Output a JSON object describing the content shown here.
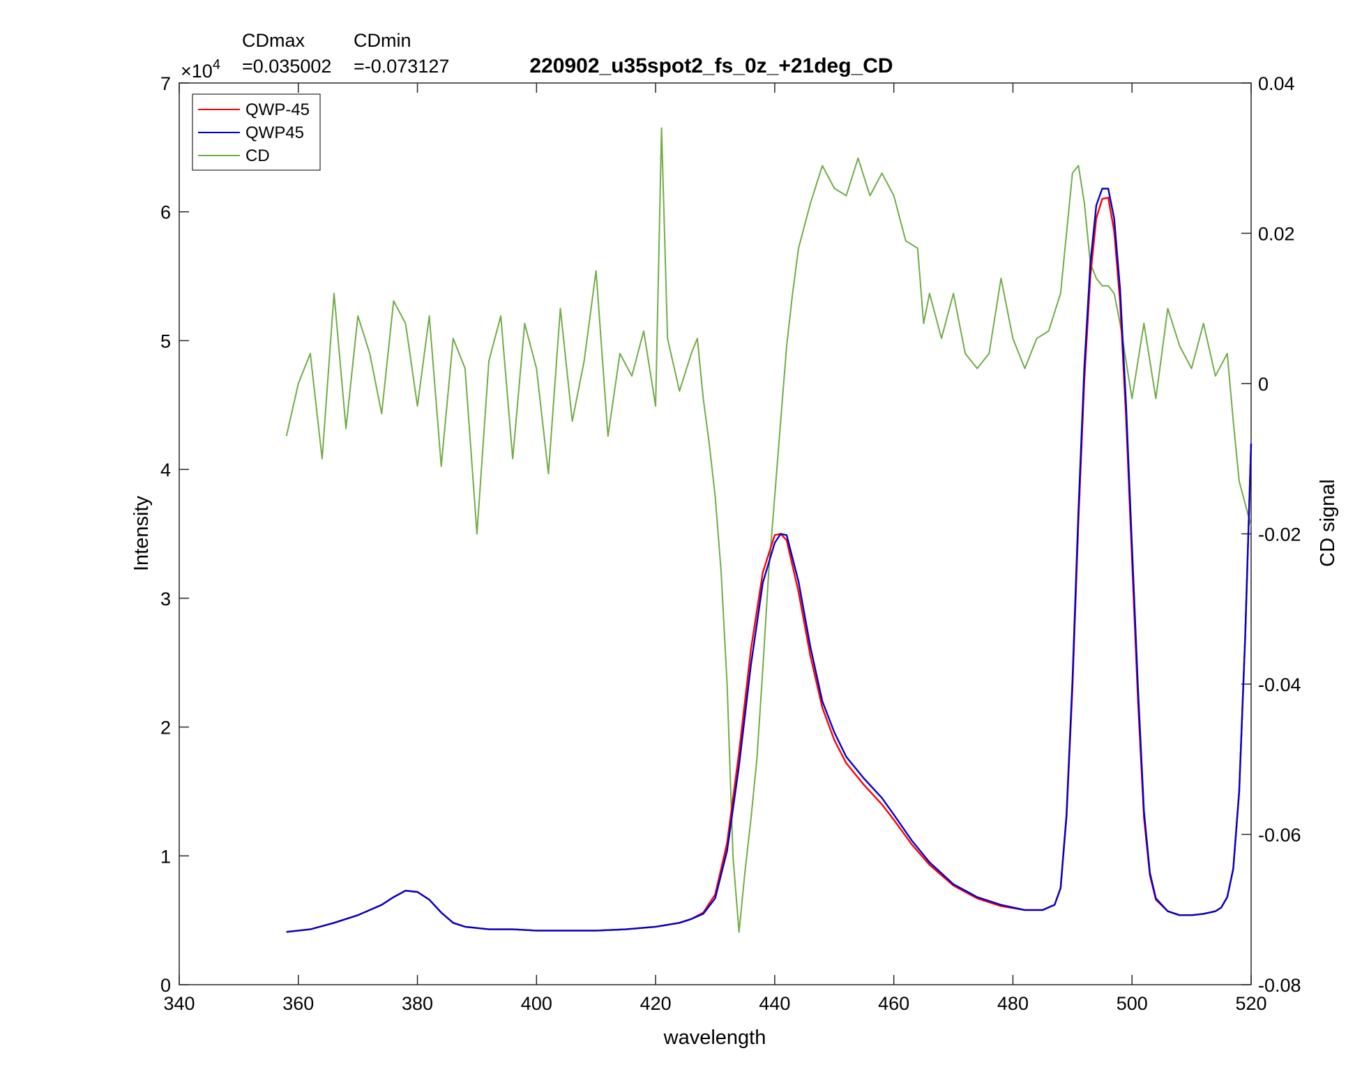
{
  "chart_data": {
    "type": "line",
    "title": "220902_u35spot2_fs_0z_+21deg_CD",
    "annotations": {
      "cdmax_label": "CDmax",
      "cdmax_value": "=0.035002",
      "cdmin_label": "CDmin",
      "cdmin_value": "=-0.073127"
    },
    "xlabel": "wavelength",
    "ylabel_left": "Intensity",
    "ylabel_right": "CD signal",
    "y_exponent_label": "×10",
    "y_exponent_power": "4",
    "xlim": [
      340,
      520
    ],
    "ylim_left": [
      0,
      70000
    ],
    "ylim_right": [
      -0.08,
      0.04
    ],
    "x_ticks": [
      "340",
      "360",
      "380",
      "400",
      "420",
      "440",
      "460",
      "480",
      "500",
      "520"
    ],
    "y_left_ticks": [
      "0",
      "1",
      "2",
      "3",
      "4",
      "5",
      "6",
      "7"
    ],
    "y_right_ticks": [
      "-0.08",
      "-0.06",
      "-0.04",
      "-0.02",
      "0",
      "0.02",
      "0.04"
    ],
    "grid": false,
    "legend_position": "top-left",
    "series": [
      {
        "name": "QWP-45",
        "axis": "left",
        "color": "#ff0000",
        "x": [
          358,
          362,
          366,
          370,
          374,
          376,
          378,
          380,
          382,
          384,
          386,
          388,
          392,
          396,
          400,
          405,
          410,
          415,
          420,
          424,
          426,
          428,
          430,
          432,
          434,
          436,
          438,
          440,
          441,
          442,
          444,
          446,
          448,
          450,
          452,
          455,
          458,
          460,
          463,
          466,
          470,
          474,
          478,
          482,
          485,
          487,
          488,
          489,
          490,
          491,
          492,
          493,
          494,
          495,
          496,
          497,
          498,
          499,
          500,
          501,
          502,
          503,
          504,
          506,
          508,
          510,
          512,
          514,
          515,
          516,
          517,
          518,
          519,
          520
        ],
        "y": [
          4100,
          4300,
          4800,
          5400,
          6200,
          6800,
          7300,
          7200,
          6600,
          5600,
          4800,
          4500,
          4300,
          4300,
          4200,
          4200,
          4200,
          4300,
          4500,
          4800,
          5100,
          5600,
          7000,
          11000,
          18000,
          26000,
          32000,
          34900,
          35000,
          34500,
          30500,
          25500,
          21500,
          19000,
          17200,
          15500,
          14000,
          12800,
          10900,
          9300,
          7700,
          6700,
          6100,
          5800,
          5800,
          6200,
          7500,
          13000,
          23000,
          36000,
          47000,
          55000,
          59500,
          61000,
          61100,
          58500,
          53000,
          44000,
          33000,
          22000,
          13000,
          8500,
          6600,
          5700,
          5400,
          5400,
          5500,
          5700,
          6000,
          6800,
          9000,
          15000,
          27000,
          42000
        ]
      },
      {
        "name": "QWP45",
        "axis": "left",
        "color": "#0000cc",
        "x": [
          358,
          362,
          366,
          370,
          374,
          376,
          378,
          380,
          382,
          384,
          386,
          388,
          392,
          396,
          400,
          405,
          410,
          415,
          420,
          424,
          426,
          428,
          430,
          432,
          434,
          436,
          438,
          440,
          441,
          442,
          444,
          446,
          448,
          450,
          452,
          455,
          458,
          460,
          463,
          466,
          470,
          474,
          478,
          482,
          485,
          487,
          488,
          489,
          490,
          491,
          492,
          493,
          494,
          495,
          496,
          497,
          498,
          499,
          500,
          501,
          502,
          503,
          504,
          506,
          508,
          510,
          512,
          514,
          515,
          516,
          517,
          518,
          519,
          520
        ],
        "y": [
          4100,
          4300,
          4800,
          5400,
          6200,
          6800,
          7300,
          7200,
          6600,
          5600,
          4800,
          4500,
          4300,
          4300,
          4200,
          4200,
          4200,
          4300,
          4500,
          4800,
          5100,
          5500,
          6700,
          10400,
          17000,
          24800,
          31200,
          34300,
          35000,
          34900,
          31300,
          26200,
          22000,
          19600,
          17700,
          16000,
          14500,
          13200,
          11200,
          9500,
          7800,
          6800,
          6200,
          5800,
          5800,
          6200,
          7500,
          13200,
          23600,
          36800,
          48000,
          56000,
          60500,
          61800,
          61800,
          59500,
          54000,
          45000,
          34000,
          23000,
          13500,
          8700,
          6700,
          5700,
          5400,
          5400,
          5500,
          5700,
          6000,
          6800,
          9000,
          15000,
          27000,
          42000
        ]
      },
      {
        "name": "CD",
        "axis": "right",
        "color": "#70ad47",
        "x": [
          358,
          360,
          362,
          364,
          366,
          368,
          370,
          372,
          374,
          376,
          378,
          380,
          382,
          384,
          386,
          388,
          390,
          392,
          394,
          396,
          398,
          400,
          402,
          404,
          406,
          408,
          410,
          412,
          414,
          416,
          418,
          420,
          421,
          422,
          424,
          426,
          427,
          428,
          429,
          430,
          431,
          432,
          433,
          434,
          435,
          436,
          437,
          438,
          439,
          440,
          441,
          442,
          443,
          444,
          446,
          448,
          450,
          452,
          454,
          456,
          458,
          460,
          462,
          464,
          465,
          466,
          468,
          470,
          472,
          474,
          476,
          478,
          480,
          482,
          484,
          486,
          488,
          490,
          491,
          492,
          493,
          494,
          495,
          496,
          497,
          498,
          500,
          502,
          504,
          506,
          508,
          510,
          512,
          514,
          516,
          517,
          518,
          519,
          520
        ],
        "y": [
          -0.007,
          0.0,
          0.004,
          -0.01,
          0.012,
          -0.006,
          0.009,
          0.004,
          -0.004,
          0.011,
          0.008,
          -0.003,
          0.009,
          -0.011,
          0.006,
          0.002,
          -0.02,
          0.003,
          0.009,
          -0.01,
          0.008,
          0.002,
          -0.012,
          0.01,
          -0.005,
          0.003,
          0.015,
          -0.007,
          0.004,
          0.001,
          0.007,
          -0.003,
          0.034,
          0.006,
          -0.001,
          0.004,
          0.006,
          -0.002,
          -0.008,
          -0.015,
          -0.025,
          -0.04,
          -0.063,
          -0.073,
          -0.065,
          -0.058,
          -0.05,
          -0.038,
          -0.025,
          -0.015,
          -0.005,
          0.005,
          0.012,
          0.018,
          0.024,
          0.029,
          0.026,
          0.025,
          0.03,
          0.025,
          0.028,
          0.025,
          0.019,
          0.018,
          0.008,
          0.012,
          0.006,
          0.012,
          0.004,
          0.002,
          0.004,
          0.014,
          0.006,
          0.002,
          0.006,
          0.007,
          0.012,
          0.028,
          0.029,
          0.024,
          0.016,
          0.014,
          0.013,
          0.013,
          0.012,
          0.008,
          -0.002,
          0.008,
          -0.002,
          0.01,
          0.005,
          0.002,
          0.008,
          0.001,
          0.004,
          -0.005,
          -0.013,
          -0.016,
          -0.019
        ]
      }
    ]
  }
}
